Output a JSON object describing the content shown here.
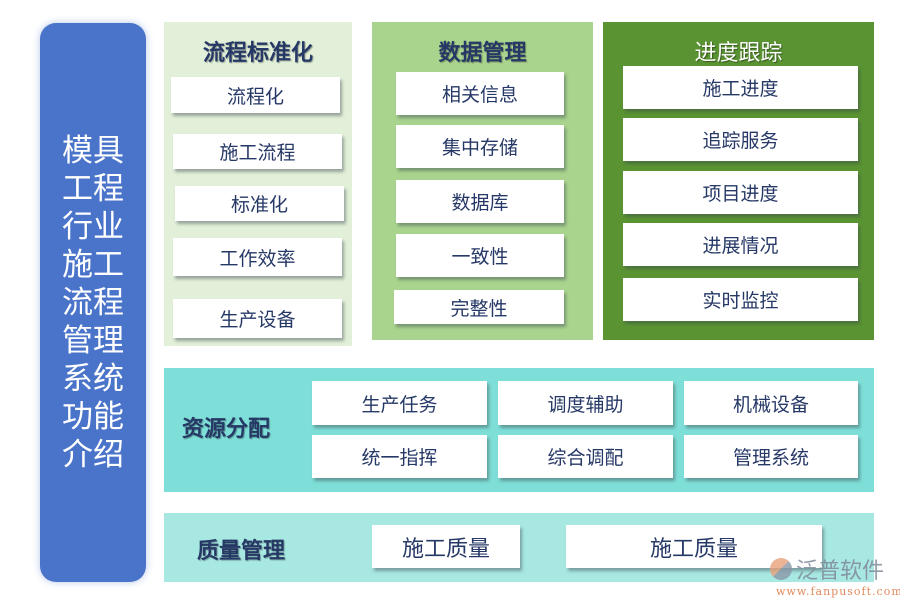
{
  "sidebar": {
    "title": "模具工程行业施工流程管理系统功能介绍"
  },
  "process": {
    "title": "流程标准化",
    "items": [
      "流程化",
      "施工流程",
      "标准化",
      "工作效率",
      "生产设备"
    ]
  },
  "data_mgmt": {
    "title": "数据管理",
    "items": [
      "相关信息",
      "集中存储",
      "数据库",
      "一致性",
      "完整性"
    ]
  },
  "progress": {
    "title": "进度跟踪",
    "items": [
      "施工进度",
      "追踪服务",
      "项目进度",
      "进展情况",
      "实时监控"
    ]
  },
  "resource": {
    "title": "资源分配",
    "items": [
      "生产任务",
      "调度辅助",
      "机械设备",
      "统一指挥",
      "综合调配",
      "管理系统"
    ]
  },
  "quality": {
    "title": "质量管理",
    "items": [
      "施工质量",
      "施工质量"
    ]
  },
  "watermark": {
    "brand": "泛普软件",
    "url": "www.fanpusoft.com"
  },
  "colors": {
    "sidebar": "#4a74c9",
    "process_bg": "#e2f0d9",
    "data_bg": "#a9d48e",
    "progress_bg": "#5a9432",
    "resource_bg": "#7edfd8",
    "quality_bg": "#a8e8e2",
    "text": "#263866"
  }
}
